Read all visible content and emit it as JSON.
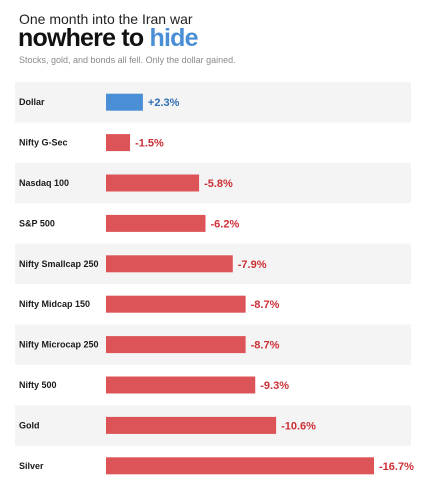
{
  "header": {
    "kicker": "One month into the Iran war",
    "headline_main": "nowhere to",
    "headline_accent": "hide",
    "subtitle": "Stocks, gold, and bonds all fell. Only the dollar gained."
  },
  "colors": {
    "positive": "#4a8fd6",
    "negative": "#dc5458",
    "positive_text": "#2f6fb3",
    "negative_text": "#cc2f36",
    "row_band": "#f4f4f4"
  },
  "chart_data": {
    "type": "bar",
    "orientation": "horizontal",
    "categories": [
      "Dollar",
      "Nifty G-Sec",
      "Nasdaq 100",
      "S&P 500",
      "Nifty Smallcap 250",
      "Nifty Midcap 150",
      "Nifty Microcap 250",
      "Nifty 500",
      "Gold",
      "Silver"
    ],
    "values": [
      2.3,
      -1.5,
      -5.8,
      -6.2,
      -7.9,
      -8.7,
      -8.7,
      -9.3,
      -10.6,
      -16.7
    ],
    "value_labels": [
      "+2.3%",
      "-1.5%",
      "-5.8%",
      "-6.2%",
      "-7.9%",
      "-8.7%",
      "-8.7%",
      "-9.3%",
      "-10.6%",
      "-16.7%"
    ],
    "unit": "%",
    "grid": false,
    "legend": "none"
  }
}
